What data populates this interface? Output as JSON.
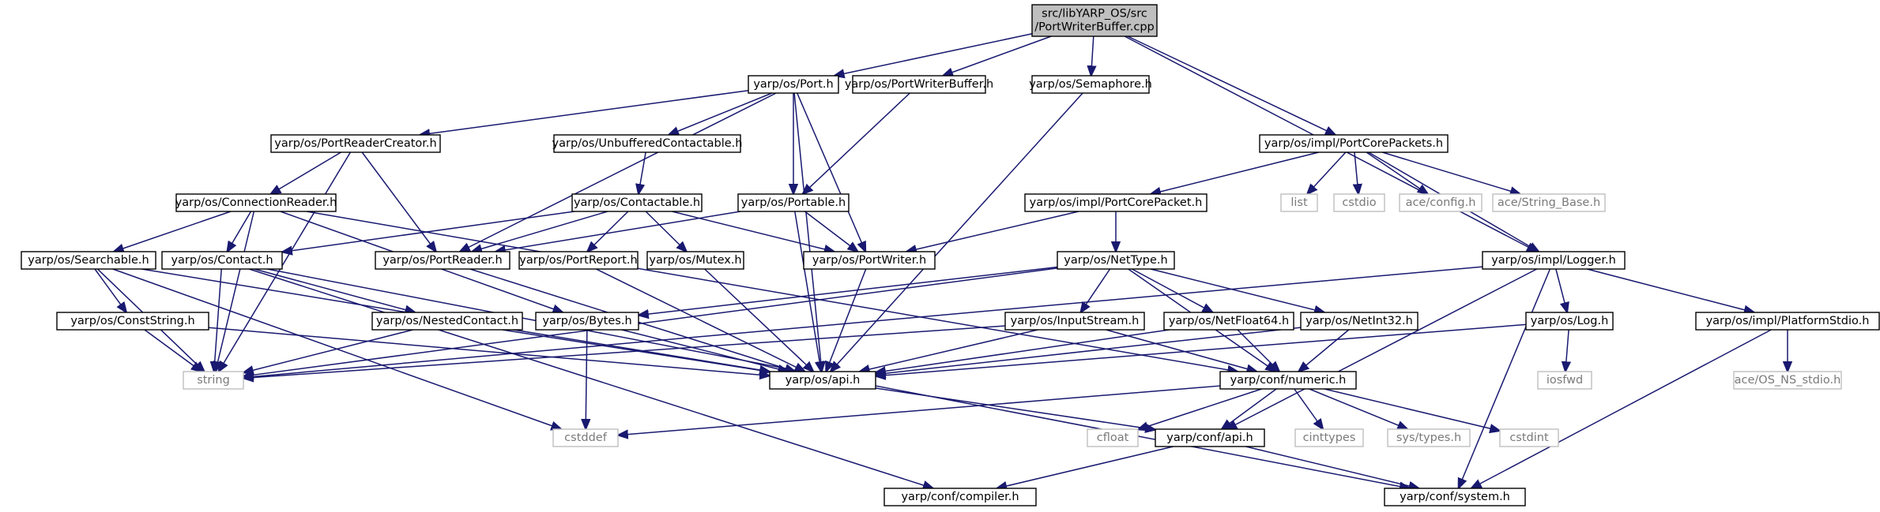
{
  "diagram": {
    "type": "include-dependency-graph",
    "edge_color": "#191970",
    "nodes": [
      {
        "id": "root",
        "lines": [
          "src/libYARP_OS/src",
          "/PortWriterBuffer.cpp"
        ],
        "style": "root"
      },
      {
        "id": "port_h",
        "lines": [
          "yarp/os/Port.h"
        ],
        "style": "normal"
      },
      {
        "id": "portwriterbuffer_h",
        "lines": [
          "yarp/os/PortWriterBuffer.h"
        ],
        "style": "normal"
      },
      {
        "id": "semaphore_h",
        "lines": [
          "yarp/os/Semaphore.h"
        ],
        "style": "normal"
      },
      {
        "id": "portreadercreator_h",
        "lines": [
          "yarp/os/PortReaderCreator.h"
        ],
        "style": "normal"
      },
      {
        "id": "unbufferedcontactable_h",
        "lines": [
          "yarp/os/UnbufferedContactable.h"
        ],
        "style": "normal"
      },
      {
        "id": "portcorepackets_h",
        "lines": [
          "yarp/os/impl/PortCorePackets.h"
        ],
        "style": "normal"
      },
      {
        "id": "connectionreader_h",
        "lines": [
          "yarp/os/ConnectionReader.h"
        ],
        "style": "normal"
      },
      {
        "id": "contactable_h",
        "lines": [
          "yarp/os/Contactable.h"
        ],
        "style": "normal"
      },
      {
        "id": "portable_h",
        "lines": [
          "yarp/os/Portable.h"
        ],
        "style": "normal"
      },
      {
        "id": "portcorepacket_h",
        "lines": [
          "yarp/os/impl/PortCorePacket.h"
        ],
        "style": "normal"
      },
      {
        "id": "list",
        "lines": [
          "list"
        ],
        "style": "system"
      },
      {
        "id": "cstdio",
        "lines": [
          "cstdio"
        ],
        "style": "system"
      },
      {
        "id": "ace_config_h",
        "lines": [
          "ace/config.h"
        ],
        "style": "system"
      },
      {
        "id": "ace_string_base_h",
        "lines": [
          "ace/String_Base.h"
        ],
        "style": "system"
      },
      {
        "id": "searchable_h",
        "lines": [
          "yarp/os/Searchable.h"
        ],
        "style": "normal"
      },
      {
        "id": "contact_h",
        "lines": [
          "yarp/os/Contact.h"
        ],
        "style": "normal"
      },
      {
        "id": "portreader_h",
        "lines": [
          "yarp/os/PortReader.h"
        ],
        "style": "normal"
      },
      {
        "id": "portreport_h",
        "lines": [
          "yarp/os/PortReport.h"
        ],
        "style": "normal"
      },
      {
        "id": "mutex_h",
        "lines": [
          "yarp/os/Mutex.h"
        ],
        "style": "normal"
      },
      {
        "id": "portwriter_h",
        "lines": [
          "yarp/os/PortWriter.h"
        ],
        "style": "normal"
      },
      {
        "id": "nettype_h",
        "lines": [
          "yarp/os/NetType.h"
        ],
        "style": "normal"
      },
      {
        "id": "logger_h",
        "lines": [
          "yarp/os/impl/Logger.h"
        ],
        "style": "normal"
      },
      {
        "id": "conststring_h",
        "lines": [
          "yarp/os/ConstString.h"
        ],
        "style": "normal"
      },
      {
        "id": "nestedcontact_h",
        "lines": [
          "yarp/os/NestedContact.h"
        ],
        "style": "normal"
      },
      {
        "id": "bytes_h",
        "lines": [
          "yarp/os/Bytes.h"
        ],
        "style": "normal"
      },
      {
        "id": "inputstream_h",
        "lines": [
          "yarp/os/InputStream.h"
        ],
        "style": "normal"
      },
      {
        "id": "netfloat64_h",
        "lines": [
          "yarp/os/NetFloat64.h"
        ],
        "style": "normal"
      },
      {
        "id": "netint32_h",
        "lines": [
          "yarp/os/NetInt32.h"
        ],
        "style": "normal"
      },
      {
        "id": "log_h",
        "lines": [
          "yarp/os/Log.h"
        ],
        "style": "normal"
      },
      {
        "id": "platformstdio_h",
        "lines": [
          "yarp/os/impl/PlatformStdio.h"
        ],
        "style": "normal"
      },
      {
        "id": "string",
        "lines": [
          "string"
        ],
        "style": "system"
      },
      {
        "id": "api_h",
        "lines": [
          "yarp/os/api.h"
        ],
        "style": "normal"
      },
      {
        "id": "numeric_h",
        "lines": [
          "yarp/conf/numeric.h"
        ],
        "style": "normal"
      },
      {
        "id": "iosfwd",
        "lines": [
          "iosfwd"
        ],
        "style": "system"
      },
      {
        "id": "ace_os_ns_stdio_h",
        "lines": [
          "ace/OS_NS_stdio.h"
        ],
        "style": "system"
      },
      {
        "id": "cstddef",
        "lines": [
          "cstddef"
        ],
        "style": "system"
      },
      {
        "id": "cfloat",
        "lines": [
          "cfloat"
        ],
        "style": "system"
      },
      {
        "id": "conf_api_h",
        "lines": [
          "yarp/conf/api.h"
        ],
        "style": "normal"
      },
      {
        "id": "cinttypes",
        "lines": [
          "cinttypes"
        ],
        "style": "system"
      },
      {
        "id": "sys_types_h",
        "lines": [
          "sys/types.h"
        ],
        "style": "system"
      },
      {
        "id": "cstdint",
        "lines": [
          "cstdint"
        ],
        "style": "system"
      },
      {
        "id": "compiler_h",
        "lines": [
          "yarp/conf/compiler.h"
        ],
        "style": "normal"
      },
      {
        "id": "system_h",
        "lines": [
          "yarp/conf/system.h"
        ],
        "style": "normal"
      }
    ],
    "edges": [
      [
        "root",
        "port_h"
      ],
      [
        "root",
        "portwriterbuffer_h"
      ],
      [
        "root",
        "semaphore_h"
      ],
      [
        "root",
        "portcorepackets_h"
      ],
      [
        "root",
        "logger_h"
      ],
      [
        "port_h",
        "portreadercreator_h"
      ],
      [
        "port_h",
        "unbufferedcontactable_h"
      ],
      [
        "port_h",
        "portable_h"
      ],
      [
        "port_h",
        "portreader_h"
      ],
      [
        "port_h",
        "portwriter_h"
      ],
      [
        "port_h",
        "api_h"
      ],
      [
        "portwriterbuffer_h",
        "portable_h"
      ],
      [
        "semaphore_h",
        "api_h"
      ],
      [
        "portreadercreator_h",
        "connectionreader_h"
      ],
      [
        "portreadercreator_h",
        "portreader_h"
      ],
      [
        "portreadercreator_h",
        "string"
      ],
      [
        "unbufferedcontactable_h",
        "contactable_h"
      ],
      [
        "connectionreader_h",
        "searchable_h"
      ],
      [
        "connectionreader_h",
        "contact_h"
      ],
      [
        "connectionreader_h",
        "bytes_h"
      ],
      [
        "connectionreader_h",
        "numeric_h"
      ],
      [
        "connectionreader_h",
        "string"
      ],
      [
        "contactable_h",
        "contact_h"
      ],
      [
        "contactable_h",
        "portreader_h"
      ],
      [
        "contactable_h",
        "portreport_h"
      ],
      [
        "contactable_h",
        "mutex_h"
      ],
      [
        "contactable_h",
        "portwriter_h"
      ],
      [
        "portable_h",
        "portreader_h"
      ],
      [
        "portable_h",
        "portwriter_h"
      ],
      [
        "portable_h",
        "api_h"
      ],
      [
        "portcorepackets_h",
        "portcorepacket_h"
      ],
      [
        "portcorepackets_h",
        "list"
      ],
      [
        "portcorepackets_h",
        "cstdio"
      ],
      [
        "portcorepackets_h",
        "ace_config_h"
      ],
      [
        "portcorepackets_h",
        "ace_string_base_h"
      ],
      [
        "portcorepackets_h",
        "logger_h"
      ],
      [
        "portcorepacket_h",
        "portwriter_h"
      ],
      [
        "portcorepacket_h",
        "nettype_h"
      ],
      [
        "searchable_h",
        "conststring_h"
      ],
      [
        "searchable_h",
        "string"
      ],
      [
        "searchable_h",
        "api_h"
      ],
      [
        "searchable_h",
        "cstddef"
      ],
      [
        "contact_h",
        "nestedcontact_h"
      ],
      [
        "contact_h",
        "string"
      ],
      [
        "contact_h",
        "compiler_h"
      ],
      [
        "contact_h",
        "system_h"
      ],
      [
        "portreader_h",
        "api_h"
      ],
      [
        "portreport_h",
        "api_h"
      ],
      [
        "mutex_h",
        "api_h"
      ],
      [
        "portwriter_h",
        "api_h"
      ],
      [
        "nettype_h",
        "bytes_h"
      ],
      [
        "nettype_h",
        "inputstream_h"
      ],
      [
        "nettype_h",
        "netfloat64_h"
      ],
      [
        "nettype_h",
        "netint32_h"
      ],
      [
        "nettype_h",
        "numeric_h"
      ],
      [
        "nettype_h",
        "string"
      ],
      [
        "logger_h",
        "log_h"
      ],
      [
        "logger_h",
        "platformstdio_h"
      ],
      [
        "logger_h",
        "conf_api_h"
      ],
      [
        "logger_h",
        "system_h"
      ],
      [
        "logger_h",
        "string"
      ],
      [
        "conststring_h",
        "string"
      ],
      [
        "conststring_h",
        "api_h"
      ],
      [
        "nestedcontact_h",
        "string"
      ],
      [
        "nestedcontact_h",
        "api_h"
      ],
      [
        "bytes_h",
        "cstddef"
      ],
      [
        "bytes_h",
        "api_h"
      ],
      [
        "inputstream_h",
        "api_h"
      ],
      [
        "inputstream_h",
        "numeric_h"
      ],
      [
        "inputstream_h",
        "string"
      ],
      [
        "netfloat64_h",
        "api_h"
      ],
      [
        "netfloat64_h",
        "numeric_h"
      ],
      [
        "netint32_h",
        "api_h"
      ],
      [
        "netint32_h",
        "numeric_h"
      ],
      [
        "log_h",
        "api_h"
      ],
      [
        "log_h",
        "iosfwd"
      ],
      [
        "platformstdio_h",
        "ace_os_ns_stdio_h"
      ],
      [
        "platformstdio_h",
        "system_h"
      ],
      [
        "api_h",
        "conf_api_h"
      ],
      [
        "numeric_h",
        "cfloat"
      ],
      [
        "numeric_h",
        "conf_api_h"
      ],
      [
        "numeric_h",
        "cinttypes"
      ],
      [
        "numeric_h",
        "sys_types_h"
      ],
      [
        "numeric_h",
        "cstdint"
      ],
      [
        "numeric_h",
        "cstddef"
      ],
      [
        "conf_api_h",
        "compiler_h"
      ],
      [
        "conf_api_h",
        "system_h"
      ]
    ]
  }
}
